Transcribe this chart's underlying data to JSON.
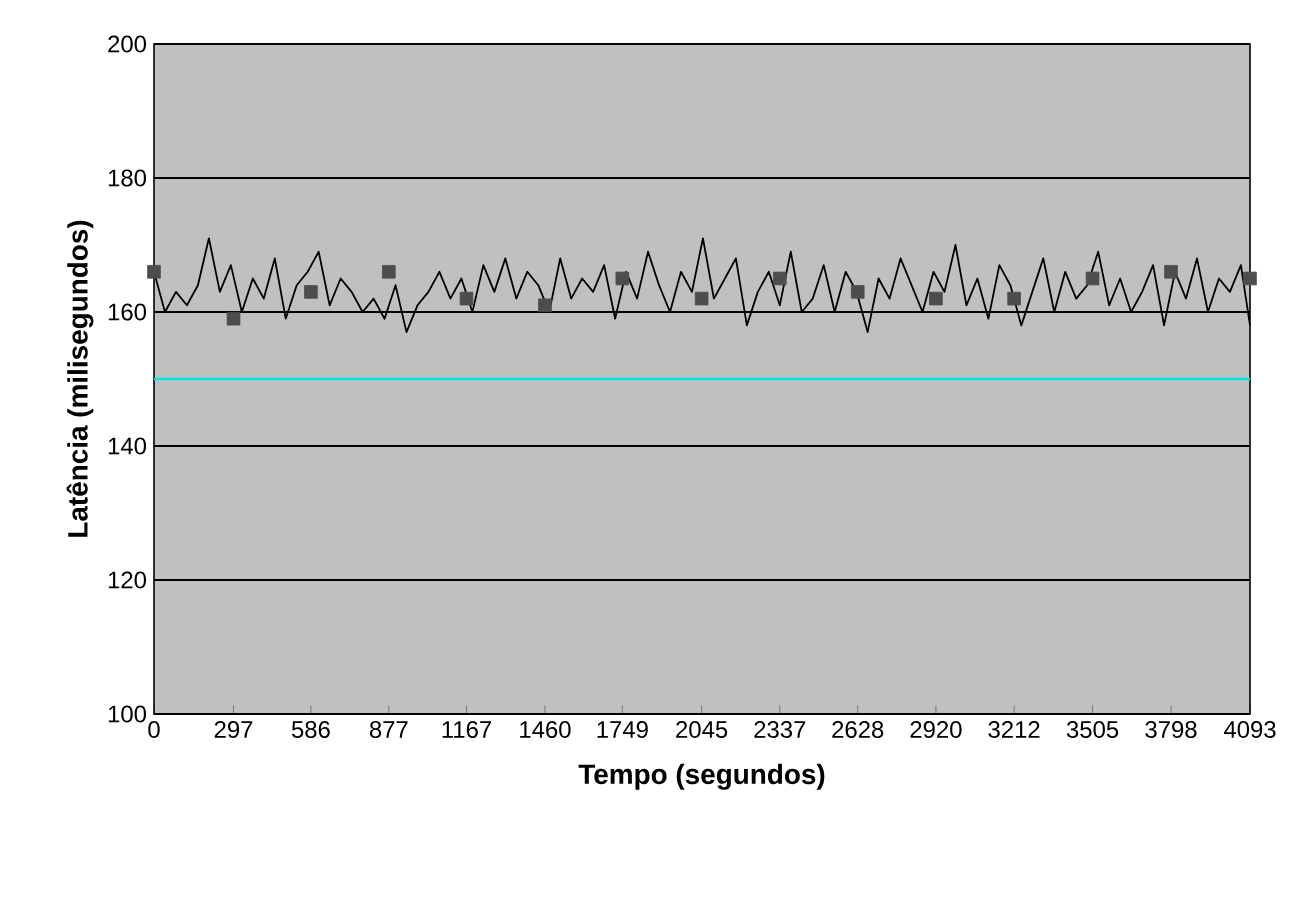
{
  "chart_data": {
    "type": "line",
    "xlabel": "Tempo (segundos)",
    "ylabel": "Latência (milisegundos)",
    "xlim": [
      0,
      4093
    ],
    "xticks": [
      0,
      297,
      586,
      877,
      1167,
      1460,
      1749,
      2045,
      2337,
      2628,
      2920,
      3212,
      3505,
      3798,
      4093
    ],
    "ylim": [
      100,
      200
    ],
    "yticks": [
      100,
      120,
      140,
      160,
      180,
      200
    ],
    "grid": "y",
    "series": [
      {
        "type": "scatter",
        "marker": "square",
        "color": "#4d4d4d",
        "x": [
          0,
          297,
          586,
          877,
          1167,
          1460,
          1749,
          2045,
          2337,
          2628,
          2920,
          3212,
          3505,
          3798,
          4093
        ],
        "values": [
          166,
          159,
          163,
          166,
          162,
          161,
          165,
          162,
          165,
          163,
          162,
          162,
          165,
          166,
          165
        ]
      },
      {
        "color": "#000000",
        "x": [
          0,
          41,
          82,
          123,
          164,
          205,
          246,
          287,
          328,
          369,
          410,
          451,
          492,
          533,
          574,
          615,
          656,
          697,
          738,
          779,
          820,
          861,
          902,
          943,
          984,
          1025,
          1066,
          1107,
          1148,
          1189,
          1230,
          1271,
          1312,
          1353,
          1394,
          1435,
          1476,
          1517,
          1558,
          1599,
          1640,
          1681,
          1722,
          1763,
          1804,
          1845,
          1886,
          1927,
          1968,
          2009,
          2050,
          2091,
          2132,
          2173,
          2214,
          2255,
          2296,
          2337,
          2378,
          2419,
          2460,
          2501,
          2542,
          2583,
          2624,
          2665,
          2706,
          2747,
          2788,
          2829,
          2870,
          2911,
          2952,
          2993,
          3034,
          3075,
          3116,
          3157,
          3198,
          3239,
          3280,
          3321,
          3362,
          3403,
          3444,
          3485,
          3526,
          3567,
          3608,
          3649,
          3690,
          3731,
          3772,
          3813,
          3854,
          3895,
          3936,
          3977,
          4018,
          4059,
          4093
        ],
        "values": [
          166,
          160,
          163,
          161,
          164,
          171,
          163,
          167,
          160,
          165,
          162,
          168,
          159,
          164,
          166,
          169,
          161,
          165,
          163,
          160,
          162,
          159,
          164,
          157,
          161,
          163,
          166,
          162,
          165,
          160,
          167,
          163,
          168,
          162,
          166,
          164,
          160,
          168,
          162,
          165,
          163,
          167,
          159,
          166,
          162,
          169,
          164,
          160,
          166,
          163,
          171,
          162,
          165,
          168,
          158,
          163,
          166,
          161,
          169,
          160,
          162,
          167,
          160,
          166,
          163,
          157,
          165,
          162,
          168,
          164,
          160,
          166,
          163,
          170,
          161,
          165,
          159,
          167,
          164,
          158,
          163,
          168,
          160,
          166,
          162,
          164,
          169,
          161,
          165,
          160,
          163,
          167,
          158,
          166,
          162,
          168,
          160,
          165,
          163,
          167,
          158
        ]
      }
    ],
    "ref_lines": [
      {
        "axis": "y",
        "value": 150,
        "color": "#00e5e5"
      }
    ]
  }
}
